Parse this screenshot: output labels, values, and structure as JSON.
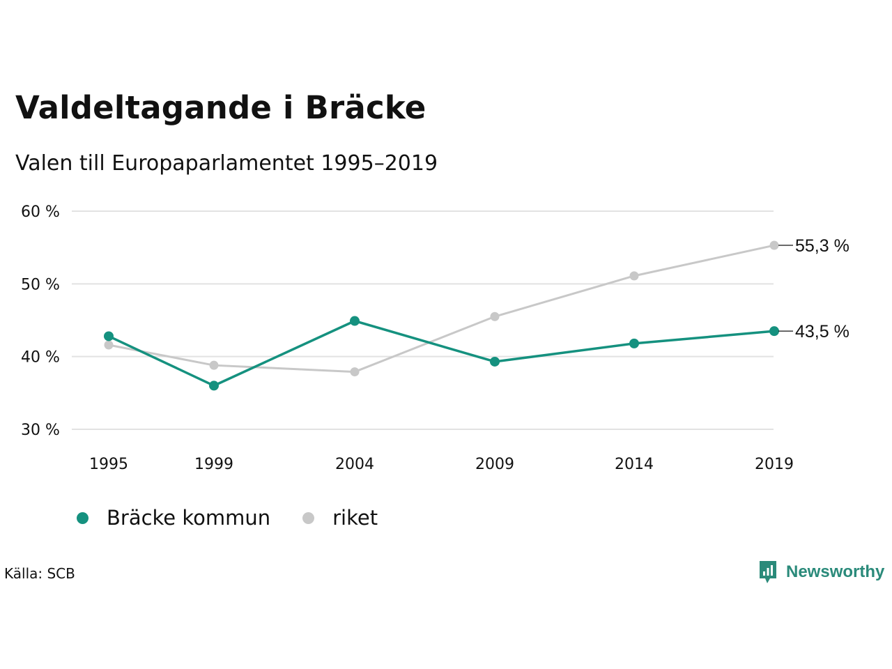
{
  "title": "Valdeltagande i Bräcke",
  "subtitle": "Valen till Europaparlamentet 1995–2019",
  "source": "Källa: SCB",
  "brand": {
    "name": "Newsworthy",
    "icon": "newsworthy-logo-icon",
    "color": "#2a8a7a"
  },
  "chart_data": {
    "type": "line",
    "x": [
      "1995",
      "1999",
      "2004",
      "2009",
      "2014",
      "2019"
    ],
    "ylim": [
      30,
      60
    ],
    "yticks": [
      "30 %",
      "40 %",
      "50 %",
      "60 %"
    ],
    "grid": true,
    "legend_position": "bottom",
    "series": [
      {
        "name": "Bräcke kommun",
        "color": "#15917f",
        "values": [
          42.8,
          36.0,
          44.9,
          39.3,
          41.8,
          43.5
        ],
        "end_label": "43,5 %"
      },
      {
        "name": "riket",
        "color": "#c8c8c8",
        "values": [
          41.6,
          38.8,
          37.9,
          45.5,
          51.1,
          55.3
        ],
        "end_label": "55,3 %"
      }
    ]
  }
}
